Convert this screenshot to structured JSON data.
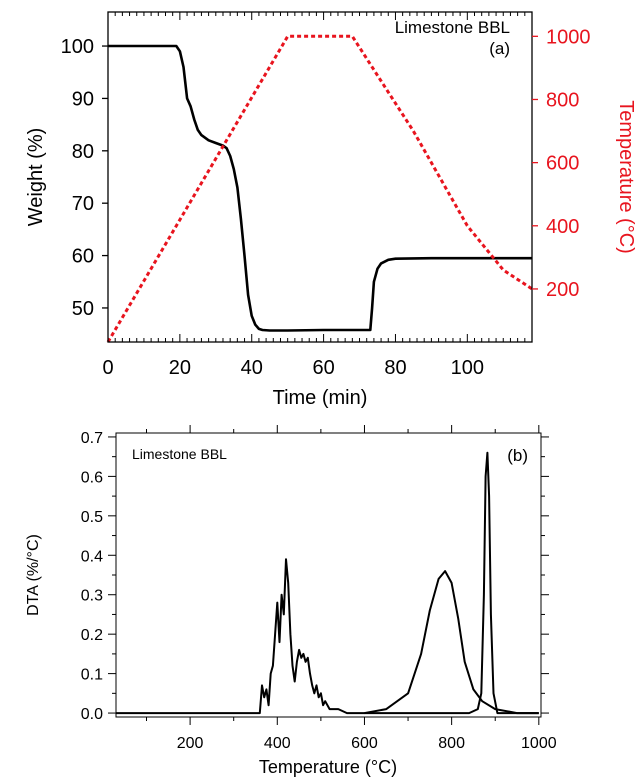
{
  "chart_data": [
    {
      "type": "line",
      "panel_label": "(a)",
      "annotation": "Limestone BBL",
      "xlabel": "Time (min)",
      "ylabel": "Weight (%)",
      "y2label": "Temperature (°C)",
      "xlim": [
        0,
        118
      ],
      "ylim": [
        43.5,
        106.5
      ],
      "y2lim": [
        32,
        1077
      ],
      "xticks": [
        0,
        20,
        40,
        60,
        80,
        100
      ],
      "yticks": [
        50,
        60,
        70,
        80,
        90,
        100
      ],
      "y2ticks": [
        200,
        400,
        600,
        800,
        1000
      ],
      "grid": false,
      "series": [
        {
          "axis": "left",
          "color": "#000000",
          "style": "solid",
          "x": [
            0,
            19,
            20,
            21,
            21.5,
            22,
            23,
            24,
            25,
            26,
            28,
            30,
            32,
            33,
            34,
            35,
            36,
            37,
            38,
            39,
            40,
            41,
            42,
            43,
            45,
            50,
            60,
            73,
            73.5,
            74,
            75,
            76,
            78,
            80,
            90,
            118
          ],
          "y": [
            100,
            100,
            99,
            96,
            93,
            90,
            88.5,
            86,
            84,
            83,
            82,
            81.5,
            81,
            80.5,
            79,
            76.5,
            73,
            67,
            60,
            52.5,
            48.5,
            46.8,
            46,
            45.8,
            45.7,
            45.7,
            45.8,
            45.8,
            50,
            55,
            57.5,
            58.5,
            59.2,
            59.4,
            59.5,
            59.5
          ]
        },
        {
          "axis": "right",
          "color": "#e8141e",
          "style": "dashed",
          "x": [
            0,
            50,
            68,
            85,
            100,
            110,
            118
          ],
          "y": [
            32,
            1000,
            1000,
            700,
            400,
            260,
            200
          ]
        }
      ]
    },
    {
      "type": "line",
      "panel_label": "(b)",
      "annotation": "Limestone BBL",
      "xlabel": "Temperature (°C)",
      "ylabel": "DTA (%/°C)",
      "xlim": [
        30,
        1005
      ],
      "ylim": [
        -0.01,
        0.71
      ],
      "xticks": [
        200,
        400,
        600,
        800,
        1000
      ],
      "yticks": [
        0.0,
        0.1,
        0.2,
        0.3,
        0.4,
        0.5,
        0.6,
        0.7
      ],
      "grid": false,
      "series": [
        {
          "color": "#000000",
          "style": "solid",
          "x": [
            30,
            360,
            365,
            370,
            375,
            380,
            385,
            390,
            395,
            400,
            405,
            410,
            415,
            420,
            425,
            430,
            435,
            440,
            445,
            450,
            455,
            460,
            465,
            470,
            475,
            480,
            485,
            490,
            495,
            500,
            505,
            510,
            520,
            540,
            560,
            580,
            600
          ],
          "y": [
            0.0,
            0.0,
            0.07,
            0.04,
            0.06,
            0.02,
            0.1,
            0.12,
            0.2,
            0.28,
            0.18,
            0.3,
            0.25,
            0.39,
            0.33,
            0.2,
            0.12,
            0.08,
            0.13,
            0.16,
            0.14,
            0.15,
            0.13,
            0.14,
            0.1,
            0.07,
            0.05,
            0.07,
            0.04,
            0.05,
            0.02,
            0.03,
            0.01,
            0.01,
            0.0,
            0.0,
            0.0
          ]
        },
        {
          "color": "#000000",
          "style": "solid",
          "x": [
            600,
            650,
            700,
            730,
            750,
            770,
            785,
            800,
            815,
            830,
            850,
            870,
            900,
            950,
            1000
          ],
          "y": [
            0.0,
            0.01,
            0.05,
            0.15,
            0.26,
            0.34,
            0.36,
            0.33,
            0.24,
            0.13,
            0.06,
            0.03,
            0.01,
            0.0,
            0.0
          ]
        },
        {
          "color": "#000000",
          "style": "solid",
          "x": [
            600,
            840,
            860,
            868,
            874,
            878,
            882,
            886,
            890,
            896,
            905,
            1000
          ],
          "y": [
            0.0,
            0.0,
            0.01,
            0.05,
            0.3,
            0.6,
            0.66,
            0.55,
            0.25,
            0.05,
            0.0,
            0.0
          ]
        }
      ]
    }
  ]
}
